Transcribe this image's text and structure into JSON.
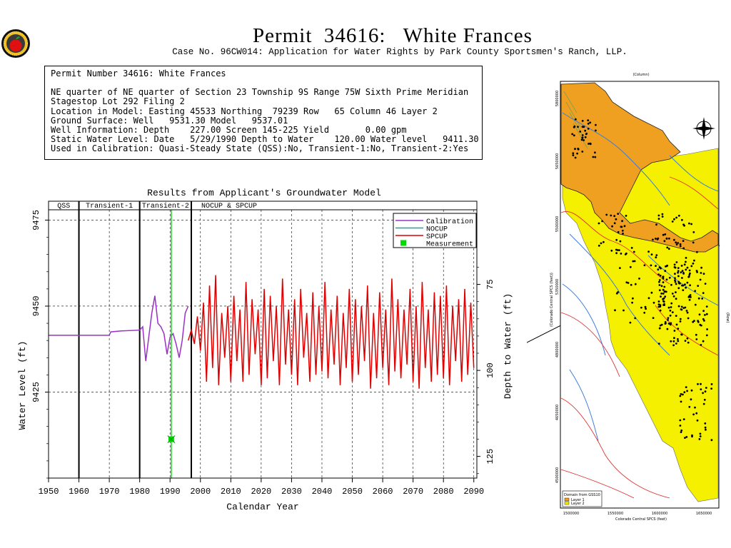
{
  "header": {
    "title": "Permit  34616:   White Frances",
    "subtitle": "Case No. 96CW014: Application for Water Rights by Park County Sportsmen's Ranch, LLP."
  },
  "info": {
    "line1": "Permit Number 34616: White Frances",
    "line2": "NE quarter of NE quarter of Section 23 Township 9S Range 75W Sixth Prime Meridian",
    "line3": "Stagestop Lot 292 Filing 2",
    "line4": "Location in Model: Easting 45533 Northing  79239 Row   65 Column 46 Layer 2",
    "line5": "Ground Surface: Well   9531.30 Model   9537.01",
    "line6": "Well Information: Depth    227.00 Screen 145-225 Yield       0.00 gpm",
    "line7": "Static Water Level: Date   5/29/1990 Depth to Water    120.00 Water level   9411.30",
    "line8": "Used in Calibration: Quasi-Steady State (QSS):No, Transient-1:No, Transient-2:Yes"
  },
  "chart_data": {
    "type": "line",
    "title": "Results from Applicant's Groundwater Model",
    "xlabel": "Calendar Year",
    "ylabel": "Water Level (ft)",
    "y2label": "Depth to Water (ft)",
    "xlim": [
      1950,
      2091
    ],
    "ylim": [
      9400,
      9478
    ],
    "x_ticks": [
      "1950",
      "1960",
      "1970",
      "1980",
      "1990",
      "2000",
      "2010",
      "2020",
      "2030",
      "2040",
      "2050",
      "2060",
      "2070",
      "2080",
      "2090"
    ],
    "y_ticks": [
      "9425",
      "9450",
      "9475"
    ],
    "y2_ticks": [
      "75",
      "100",
      "125"
    ],
    "grid": true,
    "legend_position": "top-right",
    "periods": [
      {
        "label": "QSS",
        "start": 1950,
        "end": 1960
      },
      {
        "label": "Transient-1",
        "start": 1960,
        "end": 1980
      },
      {
        "label": "Transient-2",
        "start": 1980,
        "end": 1997
      },
      {
        "label": "NOCUP  &  SPCUP",
        "start": 1997,
        "end": 2091
      }
    ],
    "series": [
      {
        "name": "Calibration",
        "color": "#9b30c8",
        "x": [
          1950,
          1960,
          1970,
          1970.5,
          1974,
          1980,
          1981,
          1982,
          1983,
          1984,
          1985,
          1986,
          1987,
          1988,
          1989,
          1990,
          1991,
          1992,
          1993,
          1994,
          1995,
          1996
        ],
        "y": [
          9441.5,
          9441.5,
          9441.5,
          9442.5,
          9442.8,
          9443,
          9444,
          9434,
          9441,
          9448,
          9453,
          9445,
          9444,
          9442,
          9436,
          9441,
          9442,
          9439,
          9435,
          9440,
          9448,
          9450
        ]
      },
      {
        "name": "NOCUP",
        "color": "#17a89a",
        "x": [],
        "y": []
      },
      {
        "name": "SPCUP",
        "color": "#e00000",
        "x": [
          1996,
          1997,
          1998,
          1999,
          2000,
          2001,
          2002,
          2003,
          2004,
          2005,
          2006,
          2007,
          2008,
          2009,
          2010,
          2011,
          2012,
          2013,
          2014,
          2015,
          2016,
          2017,
          2018,
          2019,
          2020,
          2021,
          2022,
          2023,
          2024,
          2025,
          2026,
          2027,
          2028,
          2029,
          2030,
          2031,
          2032,
          2033,
          2034,
          2035,
          2036,
          2037,
          2038,
          2039,
          2040,
          2041,
          2042,
          2043,
          2044,
          2045,
          2046,
          2047,
          2048,
          2049,
          2050,
          2051,
          2052,
          2053,
          2054,
          2055,
          2056,
          2057,
          2058,
          2059,
          2060,
          2061,
          2062,
          2063,
          2064,
          2065,
          2066,
          2067,
          2068,
          2069,
          2070,
          2071,
          2072,
          2073,
          2074,
          2075,
          2076,
          2077,
          2078,
          2079,
          2080,
          2081,
          2082,
          2083,
          2084,
          2085,
          2086,
          2087,
          2088,
          2089,
          2090
        ],
        "y": [
          9440,
          9443,
          9439,
          9447,
          9437,
          9451,
          9428,
          9456,
          9432,
          9459,
          9427,
          9448,
          9435,
          9450,
          9428,
          9453,
          9434,
          9449,
          9428,
          9457,
          9430,
          9452,
          9436,
          9449,
          9427,
          9455,
          9429,
          9453,
          9434,
          9450,
          9427,
          9458,
          9433,
          9449,
          9430,
          9452,
          9427,
          9455,
          9435,
          9448,
          9428,
          9454,
          9430,
          9450,
          9431,
          9457,
          9429,
          9449,
          9433,
          9453,
          9427,
          9448,
          9432,
          9455,
          9428,
          9452,
          9430,
          9450,
          9434,
          9456,
          9426,
          9448,
          9429,
          9454,
          9432,
          9449,
          9427,
          9458,
          9431,
          9452,
          9429,
          9449,
          9433,
          9455,
          9428,
          9450,
          9426,
          9457,
          9432,
          9449,
          9428,
          9454,
          9430,
          9453,
          9429,
          9456,
          9427,
          9450,
          9434,
          9452,
          9428,
          9455,
          9430,
          9451,
          9432
        ]
      },
      {
        "name": "Measurement",
        "color": "#00dd00",
        "type": "point",
        "x": [
          1990.4
        ],
        "y": [
          9411.3
        ]
      }
    ]
  },
  "map": {
    "top_axis_label": "(Column)",
    "right_axis_label": "(Row)",
    "left_axis_label": "(Colorado Central SPCS (feet))",
    "bottom_axis_label": "Colorado Central SPCS (feet)",
    "bottom_ticks": [
      "1500000",
      "1550000",
      "1600000",
      "1650000"
    ],
    "left_ticks": [
      "5800000",
      "5650000",
      "5500000",
      "5350000",
      "4800000",
      "4650000",
      "4500000"
    ],
    "legend_title": "Domain from GSS10",
    "legend_items": [
      {
        "label": "Layer 1",
        "color": "#f0a020"
      },
      {
        "label": "Layer 2",
        "color": "#f5f000"
      }
    ],
    "colors": {
      "layer1": "#f0a020",
      "layer2": "#f5f000",
      "rivers": "#3b7ddd",
      "roads": "#e03030",
      "wells": "#000000"
    }
  },
  "logo": {
    "colors": {
      "ring": "#111111",
      "outer": "#f0c020",
      "fruit": "#e01010"
    }
  }
}
